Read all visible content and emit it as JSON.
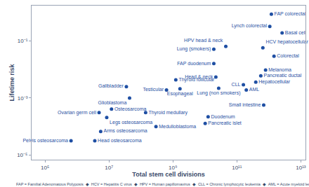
{
  "chart_data": {
    "type": "scatter",
    "x_label": "Total stem cell divisions",
    "y_label": "Lifetime risk",
    "footnote": "FAP = Familial Adenomatous Polyposis  ◆  HCV = Hepatitis C virus  ◆  HPV = Human papillomavirus  ◆  CLL = Chronic lymphocytic leukemia  ◆  AML = Acute myeloid leukemia",
    "log": true,
    "grid": false,
    "color": "#1f4fa3",
    "marker": "circle",
    "xlim": [
      38000,
      14000000000000
    ],
    "ylim": [
      7e-06,
      1.7
    ],
    "xticks": [
      {
        "value": 100000,
        "label": "10⁵"
      },
      {
        "value": 10000000,
        "label": "10⁷"
      },
      {
        "value": 1000000000,
        "label": "10⁹"
      },
      {
        "value": 100000000000,
        "label": "10¹¹"
      },
      {
        "value": 10000000000000,
        "label": "10¹³"
      }
    ],
    "yticks": [
      {
        "value": 1e-05,
        "label": "10⁻⁵"
      },
      {
        "value": 0.001,
        "label": "10⁻³"
      },
      {
        "value": 0.1,
        "label": "10⁻¹"
      }
    ],
    "labels": [
      "FAP colorectal",
      "Lynch colorectal",
      "Basal cell",
      "HCV hepatocellular",
      "Colorectal",
      "HPV head & neck",
      "Lung (smokers)",
      "FAP duodenum",
      "Melanoma",
      "Pancreatic ductal",
      "Hepatocellular",
      "CLL",
      "AML",
      "Head & neck",
      "Lung (non smokers)",
      "Thyroid follicular",
      "Esophageal",
      "Testicular",
      "Gallbladder",
      "Glioblastoma",
      "Small intestine",
      "Ovarian germ cell",
      "Osteosarcoma",
      "Thyroid medullary",
      "Legs osteosarcoma",
      "Duodenum",
      "Pancreatic islet",
      "Medulloblastoma",
      "Arms osteosarcoma",
      "Pelvis osteosarcoma",
      "Head osteosarcoma"
    ],
    "x": [
      1200000000000,
      1070000000000,
      2600000000000,
      650000000000,
      1450000000000,
      45000000000,
      19000000000,
      19000000000,
      790000000000,
      560000000000,
      390000000000,
      160000000000,
      197000000000,
      22000000000,
      27000000000,
      1230000000,
      1660000000,
      630000000,
      35000000,
      44000000,
      690000000000,
      4900000,
      12000000,
      140000000,
      8500000,
      12600000000,
      10200000000,
      295000000,
      5500000,
      650000,
      3600000
    ],
    "values": [
      0.85,
      0.32,
      0.19,
      0.057,
      0.029,
      0.064,
      0.051,
      0.016,
      0.0095,
      0.006,
      0.0036,
      0.0029,
      0.0019,
      0.0054,
      0.0022,
      0.0043,
      0.0021,
      0.0019,
      0.0025,
      0.001,
      0.00057,
      0.00031,
      0.00041,
      0.00031,
      0.00021,
      0.00022,
      0.00013,
      0.0001,
      6.8e-05,
      3.2e-05,
      3.2e-05
    ]
  }
}
